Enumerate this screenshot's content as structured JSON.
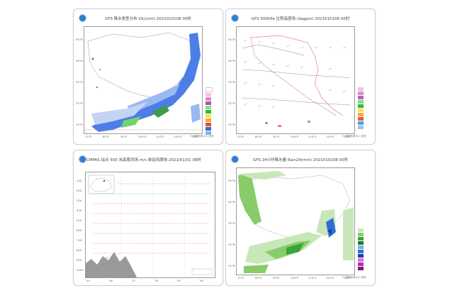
{
  "cards": [
    {
      "title": "GFS 降水类型分布 VIL(mm) 2021010108 00时",
      "ticks_x": [
        "70°E",
        "80°E",
        "90°E",
        "100°E",
        "110°E",
        "120°E",
        "130°E"
      ],
      "ticks_y": [
        "50°N",
        "40°N",
        "30°N",
        "20°N",
        "10°N"
      ],
      "footnote": "© 国家气象中心 制作",
      "legend_colors": [
        "#ffffff",
        "#f6c3e3",
        "#e887c6",
        "#b24ec0",
        "#77f07a",
        "#32b63a",
        "#f5e25a",
        "#f7a73a",
        "#e54d2d",
        "#2e6cd6",
        "#7fb2ef",
        "#c5dbf7"
      ]
    },
    {
      "title": "GFS 500hPa 位势高度场 (dagpm) 2021010108 00时",
      "ticks_x": [
        "70°E",
        "80°E",
        "90°E",
        "100°E",
        "110°E",
        "120°E",
        "130°E"
      ],
      "ticks_y": [
        "50°N",
        "40°N",
        "30°N",
        "20°N",
        "10°N"
      ],
      "footnote": "© 国家气象中心 制作",
      "legend_colors": [
        "#ffffff",
        "#f5bde3",
        "#e28ad0",
        "#b063c3",
        "#7fe27f",
        "#34b545",
        "#f6e15a",
        "#f8aa3d",
        "#ea5c33",
        "#4aa0e8",
        "#96c6f4",
        "#d5e6fb"
      ]
    },
    {
      "title": "CMPAS 站点 500 米高度风场 m/s  单站风廓线 2021/01/01 08时",
      "subtitle": "",
      "y_ticks": [
        "100",
        "200",
        "300",
        "400",
        "500",
        "600",
        "700",
        "800",
        "900",
        "1000"
      ],
      "x_ticks": [
        "00",
        "06",
        "12",
        "18",
        "00",
        "06"
      ],
      "footnote": ""
    },
    {
      "title": "GFS 24小时降水量 Rain24(mm) 2021010108 00时",
      "ticks_x": [
        "70°E",
        "80°E",
        "90°E",
        "100°E",
        "110°E",
        "120°E",
        "130°E"
      ],
      "ticks_y": [
        "50°N",
        "40°N",
        "30°N",
        "20°N",
        "10°N"
      ],
      "footnote": "© 国家气象中心 制作",
      "legend_colors": [
        "#ffffff",
        "#c8e7b8",
        "#88cc6a",
        "#3aa63a",
        "#1f7a2a",
        "#65b7ee",
        "#2a6fd5",
        "#1d3fa5",
        "#e86be2",
        "#b131b4",
        "#7b1780",
        "#f1f1f1"
      ]
    }
  ]
}
